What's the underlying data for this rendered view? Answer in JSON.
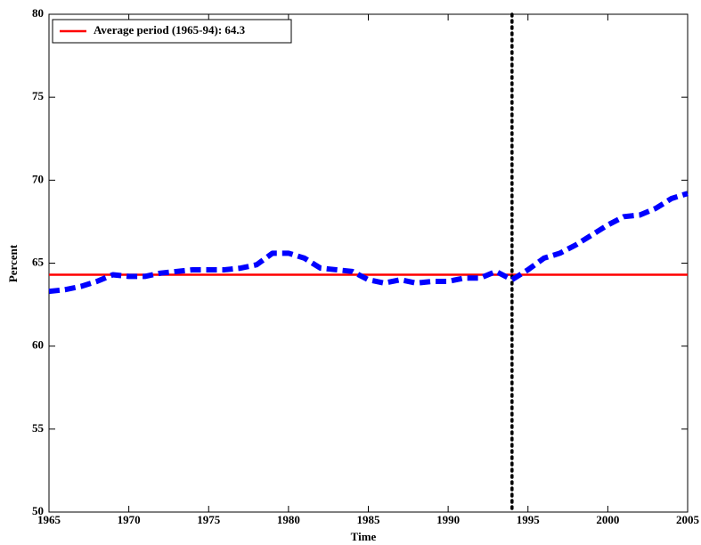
{
  "chart_data": {
    "type": "line",
    "xlabel": "Time",
    "ylabel": "Percent",
    "x": [
      1965,
      1966,
      1967,
      1968,
      1969,
      1970,
      1971,
      1972,
      1973,
      1974,
      1975,
      1976,
      1977,
      1978,
      1979,
      1980,
      1981,
      1982,
      1983,
      1984,
      1985,
      1986,
      1987,
      1988,
      1989,
      1990,
      1991,
      1992,
      1993,
      1994,
      1995,
      1996,
      1997,
      1998,
      1999,
      2000,
      2001,
      2002,
      2003,
      2004,
      2005
    ],
    "series": [
      {
        "color": "#0000ff",
        "values": [
          63.3,
          63.4,
          63.6,
          63.9,
          64.3,
          64.2,
          64.2,
          64.4,
          64.5,
          64.6,
          64.6,
          64.6,
          64.7,
          64.9,
          65.6,
          65.6,
          65.3,
          64.7,
          64.6,
          64.5,
          64.0,
          63.8,
          64.0,
          63.8,
          63.9,
          63.9,
          64.1,
          64.1,
          64.5,
          64.0,
          64.6,
          65.3,
          65.6,
          66.1,
          66.7,
          67.3,
          67.8,
          67.9,
          68.3,
          68.9,
          69.2
        ]
      }
    ],
    "hlines": [
      {
        "name": "Average period (1965-94): 64.3",
        "value": 64.3,
        "color": "#ff0000"
      }
    ],
    "vlines": [
      {
        "x": 1994,
        "color": "#000000"
      }
    ],
    "xlim": [
      1965,
      2005
    ],
    "xticks": [
      1965,
      1970,
      1975,
      1980,
      1985,
      1990,
      1995,
      2000,
      2005
    ],
    "ylim": [
      50,
      80
    ],
    "yticks": [
      50,
      55,
      60,
      65,
      70,
      75,
      80
    ],
    "legend": "upper left"
  }
}
